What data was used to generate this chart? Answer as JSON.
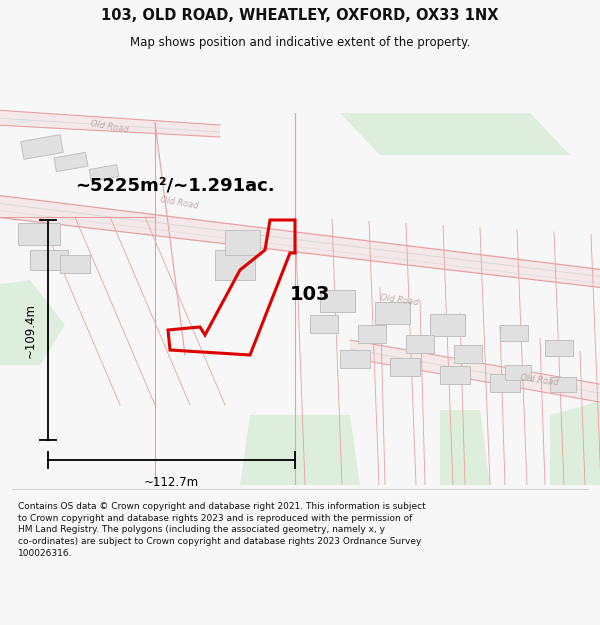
{
  "title": "103, OLD ROAD, WHEATLEY, OXFORD, OX33 1NX",
  "subtitle": "Map shows position and indicative extent of the property.",
  "footer": "Contains OS data © Crown copyright and database right 2021. This information is subject\nto Crown copyright and database rights 2023 and is reproduced with the permission of\nHM Land Registry. The polygons (including the associated geometry, namely x, y\nco-ordinates) are subject to Crown copyright and database rights 2023 Ordnance Survey\n100026316.",
  "area_label": "~5225m²/~1.291ac.",
  "label_103": "103",
  "dim_height": "~109.4m",
  "dim_width": "~112.7m",
  "bg_color": "#f7f7f7",
  "map_bg": "#ffffff",
  "road_fill": "#f5e8e8",
  "road_edge": "#e8a0a0",
  "road_center": "#d8d8d8",
  "green_fill": "#ddeedd",
  "building_fill": "#e0e0e0",
  "building_edge": "#c0c0c0",
  "poly_edge": "#dd0000",
  "dim_color": "#000000",
  "road_text": "#c0a8a8",
  "figsize": [
    6.0,
    6.25
  ],
  "dpi": 100
}
